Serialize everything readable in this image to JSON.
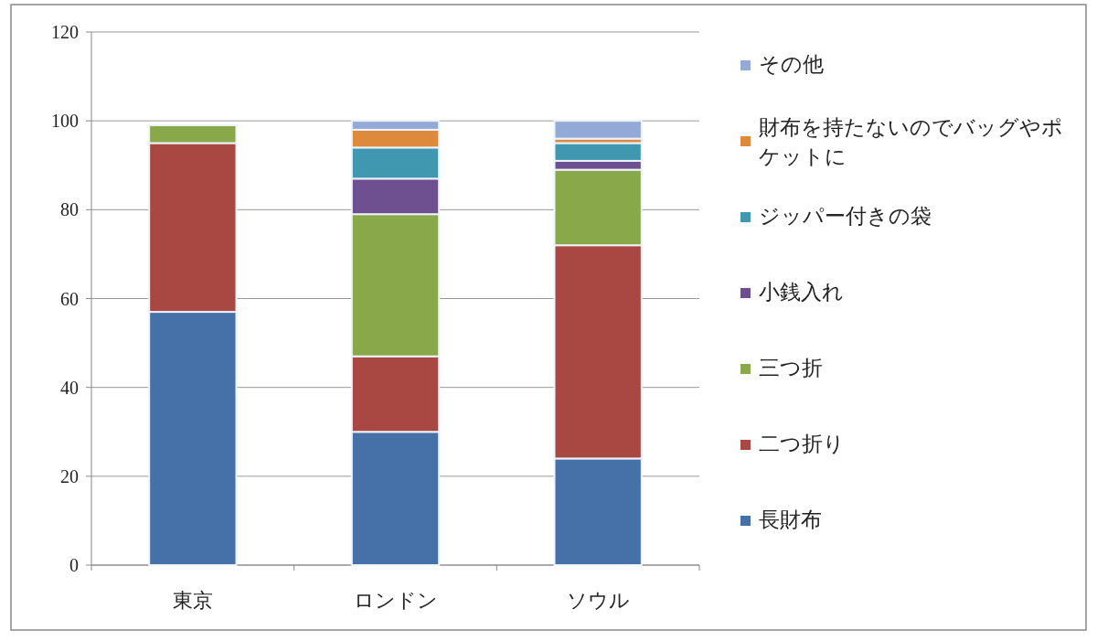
{
  "chart_data": {
    "type": "bar",
    "stacked": true,
    "categories": [
      "東京",
      "ロンドン",
      "ソウル"
    ],
    "series": [
      {
        "name": "長財布",
        "color": "#4570a8",
        "values": [
          57,
          30,
          24
        ]
      },
      {
        "name": "二つ折り",
        "color": "#a94843",
        "values": [
          38,
          17,
          48
        ]
      },
      {
        "name": "三つ折",
        "color": "#88a84a",
        "values": [
          4,
          32,
          17
        ]
      },
      {
        "name": "小銭入れ",
        "color": "#6e5090",
        "values": [
          0,
          8,
          2
        ]
      },
      {
        "name": "ジッパー付きの袋",
        "color": "#3f97b0",
        "values": [
          0,
          7,
          4
        ]
      },
      {
        "name": "財布を持たないのでバッグやポケットに",
        "color": "#de8a3c",
        "values": [
          0,
          4,
          1
        ]
      },
      {
        "name": "その他",
        "color": "#93a9d6",
        "values": [
          0,
          2,
          4
        ]
      }
    ],
    "ylim": [
      0,
      120
    ],
    "yticks": [
      0,
      20,
      40,
      60,
      80,
      100,
      120
    ],
    "grid": "y",
    "legend": "right"
  }
}
